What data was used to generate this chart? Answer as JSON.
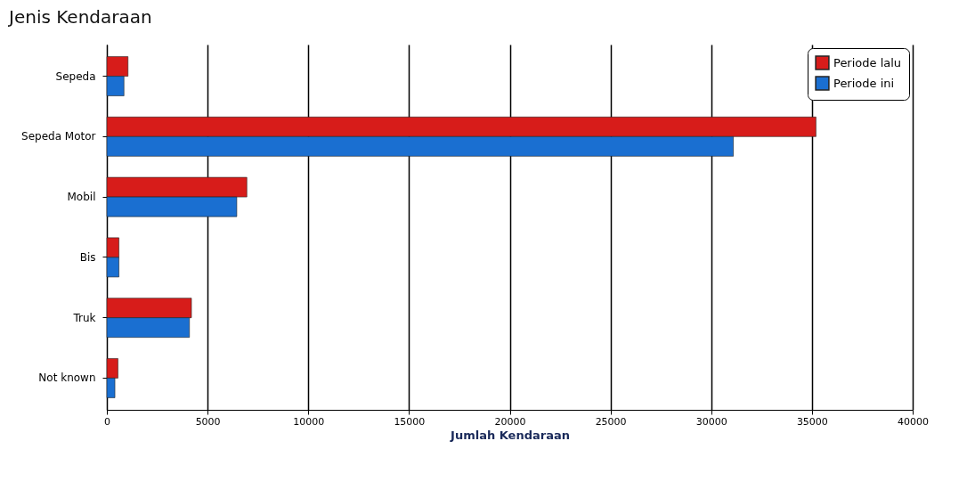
{
  "chart_data": {
    "type": "bar",
    "orientation": "horizontal",
    "title": "Jenis Kendaraan",
    "xlabel": "Jumlah Kendaraan",
    "categories": [
      "Sepeda",
      "Sepeda Motor",
      "Mobil",
      "Bis",
      "Truk",
      "Not known"
    ],
    "series": [
      {
        "name": "Periode lalu",
        "color": "#d71c1a",
        "values": [
          1050,
          35200,
          6950,
          600,
          4200,
          550
        ]
      },
      {
        "name": "Periode ini",
        "color": "#1a6fd1",
        "values": [
          850,
          31100,
          6450,
          600,
          4100,
          400
        ]
      }
    ],
    "xlim": [
      0,
      40000
    ],
    "xticks": [
      0,
      5000,
      10000,
      15000,
      20000,
      25000,
      30000,
      35000,
      40000
    ],
    "grid": "x",
    "legend": "top right"
  }
}
